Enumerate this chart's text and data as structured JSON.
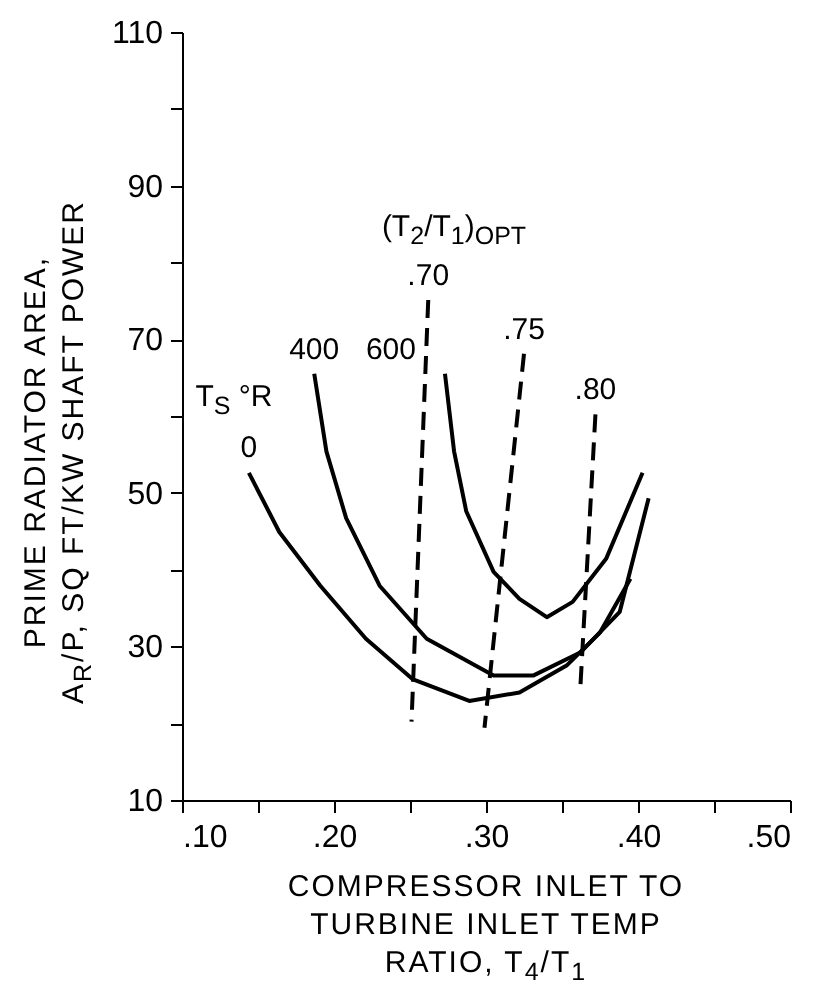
{
  "chart_data": {
    "type": "line",
    "xlabel": "COMPRESSOR INLET TO\nTURBINE INLET TEMP\nRATIO, T$_{4}$/T$_{1}$",
    "ylabel": "PRIME RADIATOR AREA,\nA$_{R}$/P, SQ FT/KW SHAFT POWER",
    "xlim": [
      0.1,
      0.5
    ],
    "xticks": [
      {
        "value": 0.1,
        "label": ".10"
      },
      {
        "value": 0.15,
        "label": null
      },
      {
        "value": 0.2,
        "label": ".20"
      },
      {
        "value": 0.25,
        "label": null
      },
      {
        "value": 0.3,
        "label": ".30"
      },
      {
        "value": 0.35,
        "label": null
      },
      {
        "value": 0.4,
        "label": ".40"
      },
      {
        "value": 0.45,
        "label": null
      },
      {
        "value": 0.5,
        "label": ".50"
      }
    ],
    "ylim": [
      10,
      110
    ],
    "yticks": [
      {
        "value": 10,
        "label": "10"
      },
      {
        "value": 20,
        "label": null
      },
      30,
      {
        "value": 40,
        "label": null
      },
      50,
      {
        "value": 60,
        "label": null
      },
      70,
      {
        "value": 80,
        "label": null
      },
      90,
      {
        "value": 100,
        "label": null
      },
      110
    ],
    "grid": false,
    "marker": "none",
    "series": [
      {
        "name": "0",
        "color": "#000000",
        "line_style": "solid",
        "x": [
          0.144,
          0.164,
          0.191,
          0.221,
          0.252,
          0.289,
          0.322,
          0.353,
          0.375,
          0.395
        ],
        "values": [
          52.6,
          44.9,
          37.9,
          31.0,
          25.7,
          22.9,
          24.0,
          27.5,
          31.8,
          38.8
        ]
      },
      {
        "name": "400",
        "color": "#000000",
        "line_style": "solid",
        "x": [
          0.187,
          0.195,
          0.208,
          0.23,
          0.261,
          0.305,
          0.331,
          0.362,
          0.388,
          0.407
        ],
        "values": [
          65.5,
          55.4,
          46.7,
          37.9,
          31.0,
          26.2,
          26.2,
          29.2,
          34.5,
          49.3
        ]
      },
      {
        "name": "600",
        "color": "#000000",
        "line_style": "solid",
        "x": [
          0.273,
          0.279,
          0.287,
          0.305,
          0.322,
          0.34,
          0.357,
          0.379,
          0.403
        ],
        "values": [
          65.5,
          55.4,
          47.6,
          39.7,
          36.2,
          33.8,
          35.8,
          41.4,
          52.6
        ]
      },
      {
        "name": ".70",
        "color": "#000000",
        "line_style": "dashed",
        "x": [
          0.262,
          0.251
        ],
        "values": [
          75.1,
          20.2
        ]
      },
      {
        "name": ".75",
        "color": "#000000",
        "line_style": "dashed",
        "x": [
          0.325,
          0.299
        ],
        "values": [
          68.1,
          19.4
        ]
      },
      {
        "name": ".80",
        "color": "#000000",
        "line_style": "dashed",
        "x": [
          0.372,
          0.362
        ],
        "values": [
          60.2,
          24.4
        ]
      }
    ],
    "annotations": [
      "T$_{S}$ °R",
      "(T$_{2}$/T$_{1}$)$_{OPT}$"
    ]
  }
}
